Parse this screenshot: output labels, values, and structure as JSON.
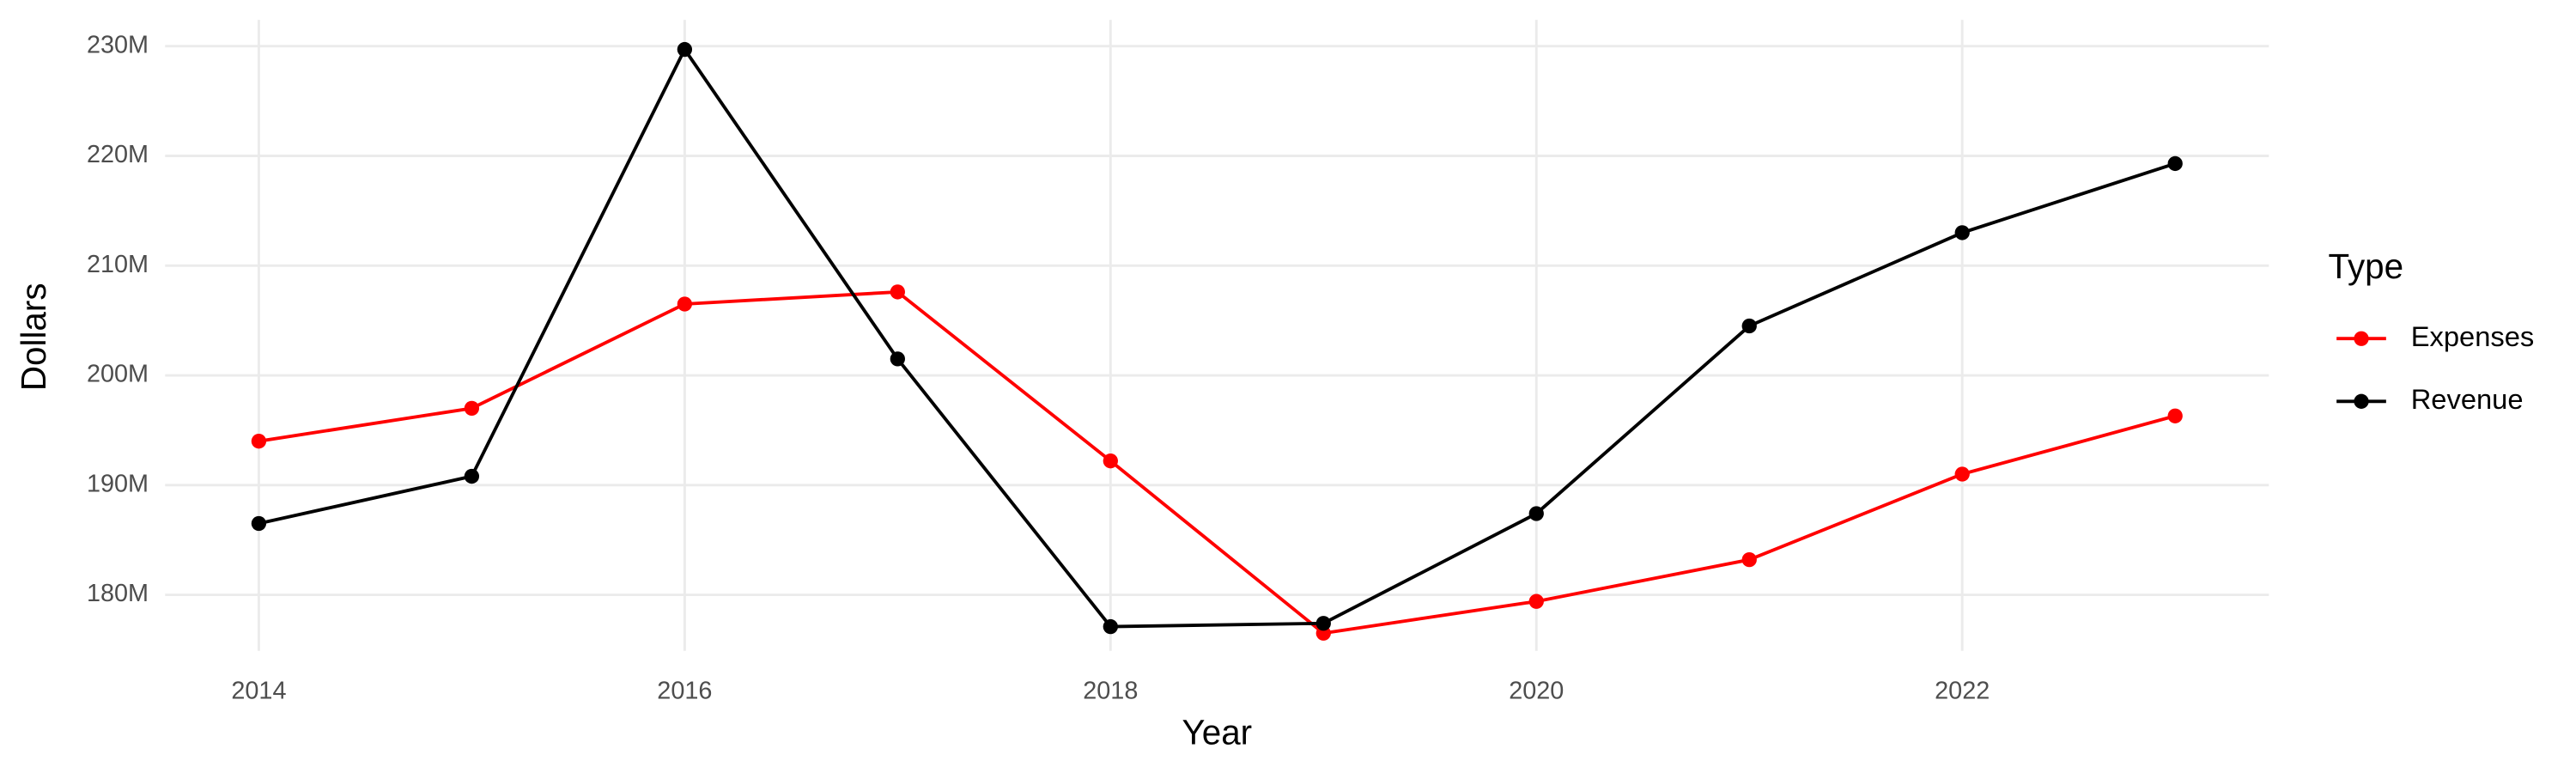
{
  "chart_data": {
    "type": "line",
    "x_label": "Year",
    "y_label": "Dollars",
    "x": [
      2014,
      2015,
      2016,
      2017,
      2018,
      2019,
      2020,
      2021,
      2022,
      2023
    ],
    "series": [
      {
        "name": "Expenses",
        "color": "#ff0000",
        "values": [
          194000000,
          197000000,
          206500000,
          207600000,
          192200000,
          176500000,
          179400000,
          183200000,
          191000000,
          196300000
        ]
      },
      {
        "name": "Revenue",
        "color": "#000000",
        "values": [
          186500000,
          190800000,
          229700000,
          201500000,
          177100000,
          177400000,
          187400000,
          204500000,
          213000000,
          219300000
        ]
      }
    ],
    "xlim": [
      2013.56,
      2023.44
    ],
    "xticks": [
      2014,
      2016,
      2018,
      2020,
      2022
    ],
    "ylim": [
      174900000,
      232400000
    ],
    "yticks": [
      {
        "value": 180000000,
        "label": "180M"
      },
      {
        "value": 190000000,
        "label": "190M"
      },
      {
        "value": 200000000,
        "label": "200M"
      },
      {
        "value": 210000000,
        "label": "210M"
      },
      {
        "value": 220000000,
        "label": "220M"
      },
      {
        "value": 230000000,
        "label": "230M"
      }
    ],
    "grid": true,
    "legend_title": "Type",
    "legend_position": "right"
  }
}
